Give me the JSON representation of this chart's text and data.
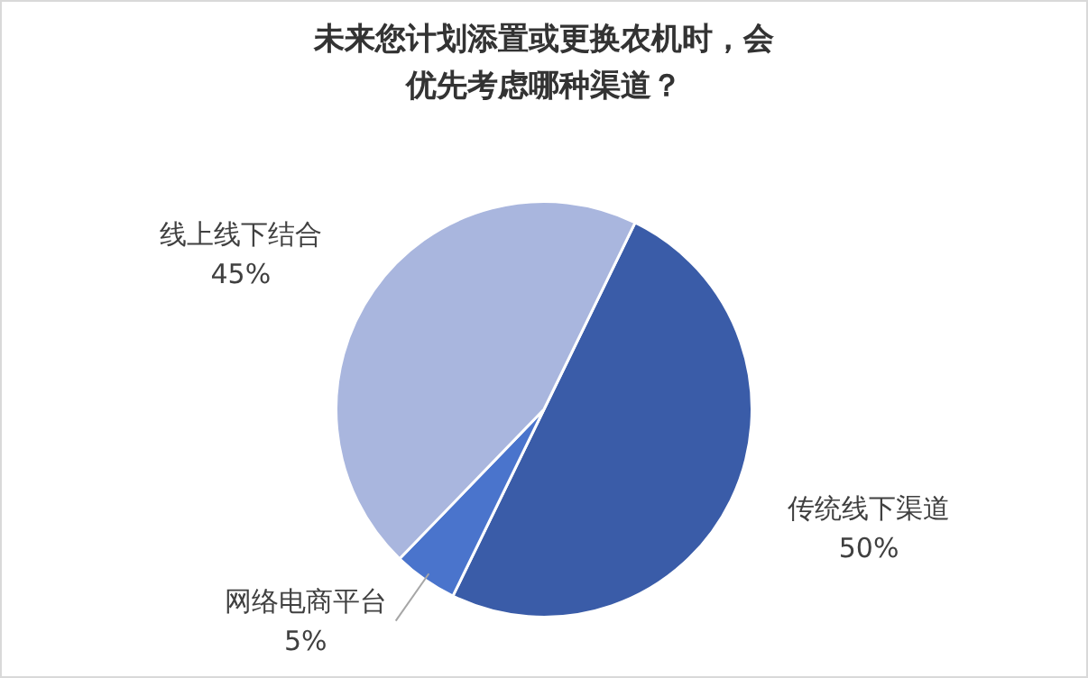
{
  "chart_data": {
    "type": "pie",
    "title": "未来您计划添置或更换农机时，会优先考虑哪种渠道？",
    "categories": [
      "传统线下渠道",
      "网络电商平台",
      "线上线下结合"
    ],
    "values": [
      50,
      5,
      45
    ],
    "value_labels": [
      "50%",
      "5%",
      "45%"
    ],
    "colors": [
      "#3a5ca8",
      "#4a74cc",
      "#a9b6de"
    ],
    "legend": false
  }
}
